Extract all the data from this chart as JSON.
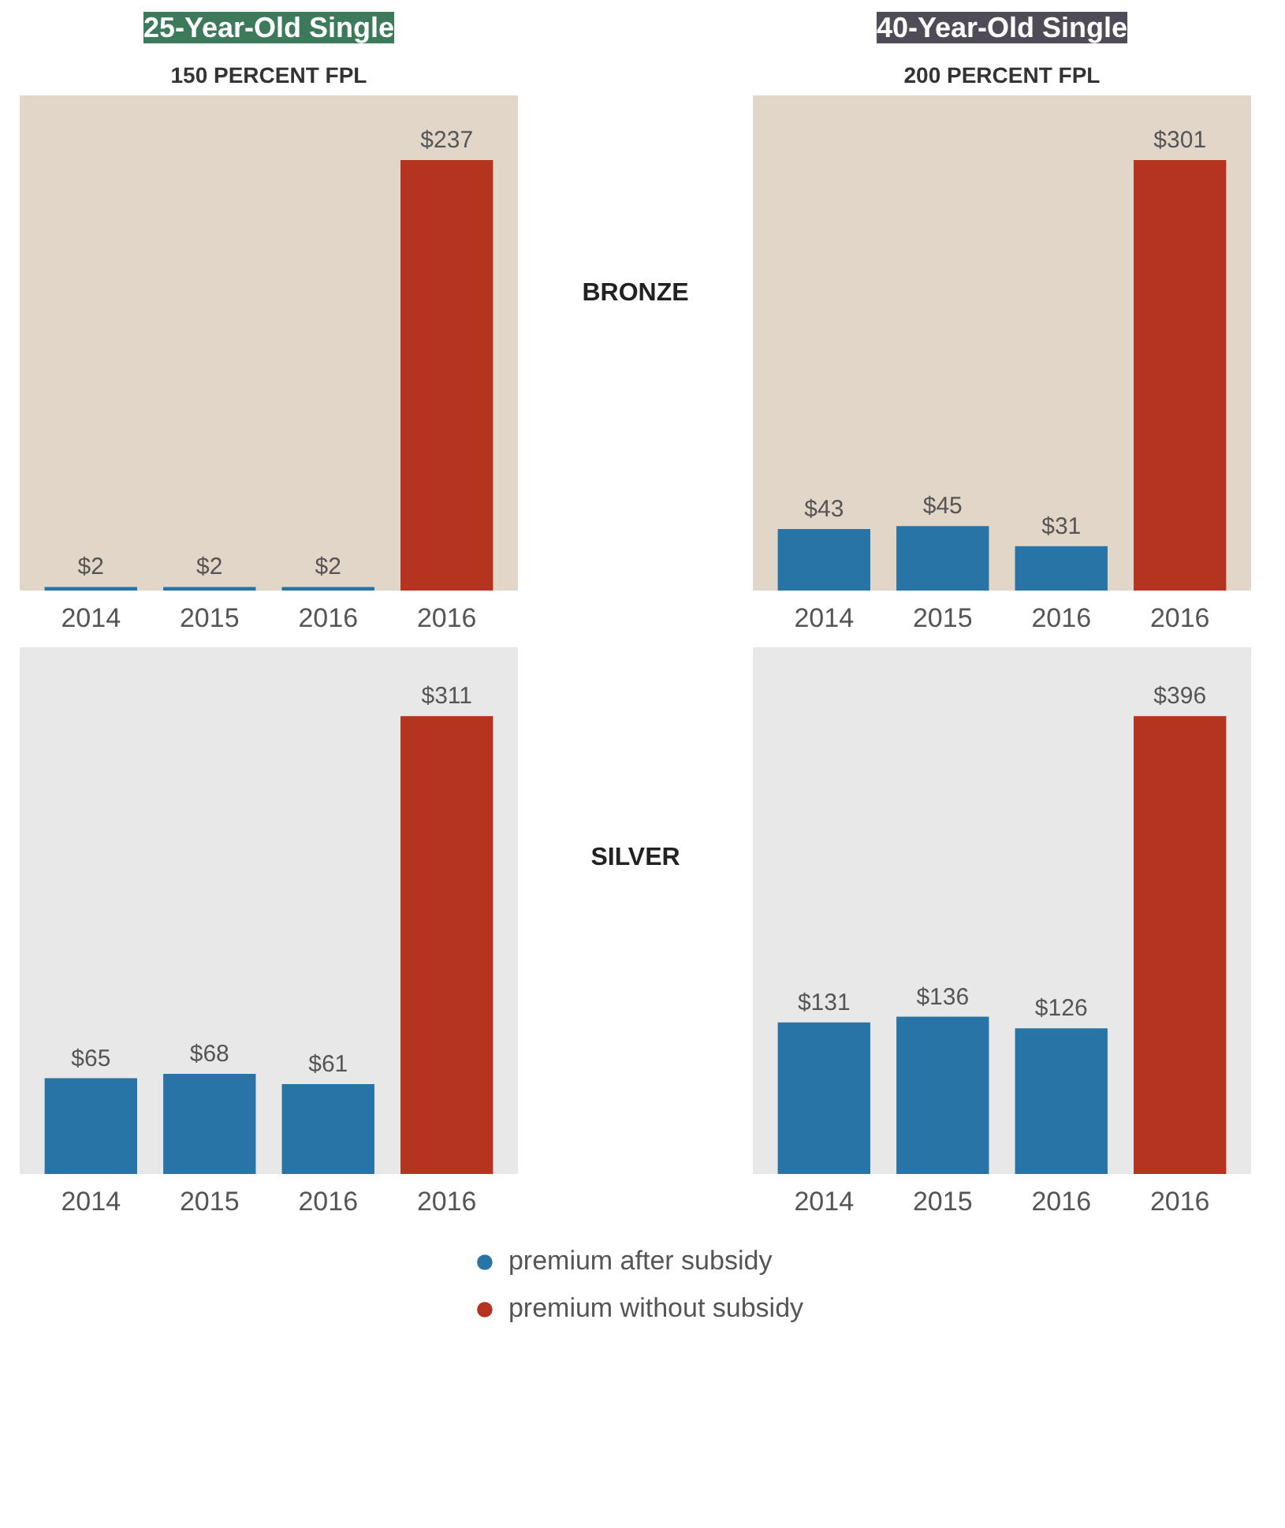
{
  "chart_data": [
    {
      "type": "bar",
      "title": "25-Year-Old Single",
      "subtitle": "150 PERCENT FPL",
      "annotations": [
        "BRONZE"
      ],
      "categories": [
        "2014",
        "2015",
        "2016",
        "2016"
      ],
      "series": [
        {
          "color": "#2874a6",
          "values": [
            2,
            2,
            2,
            null
          ],
          "value_labels": [
            "$2",
            "$2",
            "$2",
            null
          ]
        },
        {
          "color": "#b5341f",
          "values": [
            null,
            null,
            null,
            237
          ],
          "value_labels": [
            null,
            null,
            null,
            "$237"
          ]
        }
      ]
    },
    {
      "type": "bar",
      "title": "40-Year-Old Single",
      "subtitle": "200 PERCENT FPL",
      "categories": [
        "2014",
        "2015",
        "2016",
        "2016"
      ],
      "series": [
        {
          "color": "#2874a6",
          "values": [
            43,
            45,
            31,
            null
          ],
          "value_labels": [
            "$43",
            "$45",
            "$31",
            null
          ]
        },
        {
          "color": "#b5341f",
          "values": [
            null,
            null,
            null,
            301
          ],
          "value_labels": [
            null,
            null,
            null,
            "$301"
          ]
        }
      ]
    },
    {
      "type": "bar",
      "annotations": [
        "SILVER"
      ],
      "categories": [
        "2014",
        "2015",
        "2016",
        "2016"
      ],
      "series": [
        {
          "color": "#2874a6",
          "values": [
            65,
            68,
            61,
            null
          ],
          "value_labels": [
            "$65",
            "$68",
            "$61",
            null
          ]
        },
        {
          "color": "#b5341f",
          "values": [
            null,
            null,
            null,
            311
          ],
          "value_labels": [
            null,
            null,
            null,
            "$311"
          ]
        }
      ]
    },
    {
      "type": "bar",
      "legend": "bottom",
      "categories": [
        "2014",
        "2015",
        "2016",
        "2016"
      ],
      "series": [
        {
          "name": "premium after subsidy",
          "color": "#2874a6",
          "values": [
            131,
            136,
            126,
            null
          ],
          "value_labels": [
            "$131",
            "$136",
            "$126",
            null
          ]
        },
        {
          "name": "premium without subsidy",
          "color": "#b5341f",
          "values": [
            null,
            null,
            null,
            396
          ],
          "value_labels": [
            null,
            null,
            null,
            "$396"
          ]
        }
      ]
    }
  ]
}
